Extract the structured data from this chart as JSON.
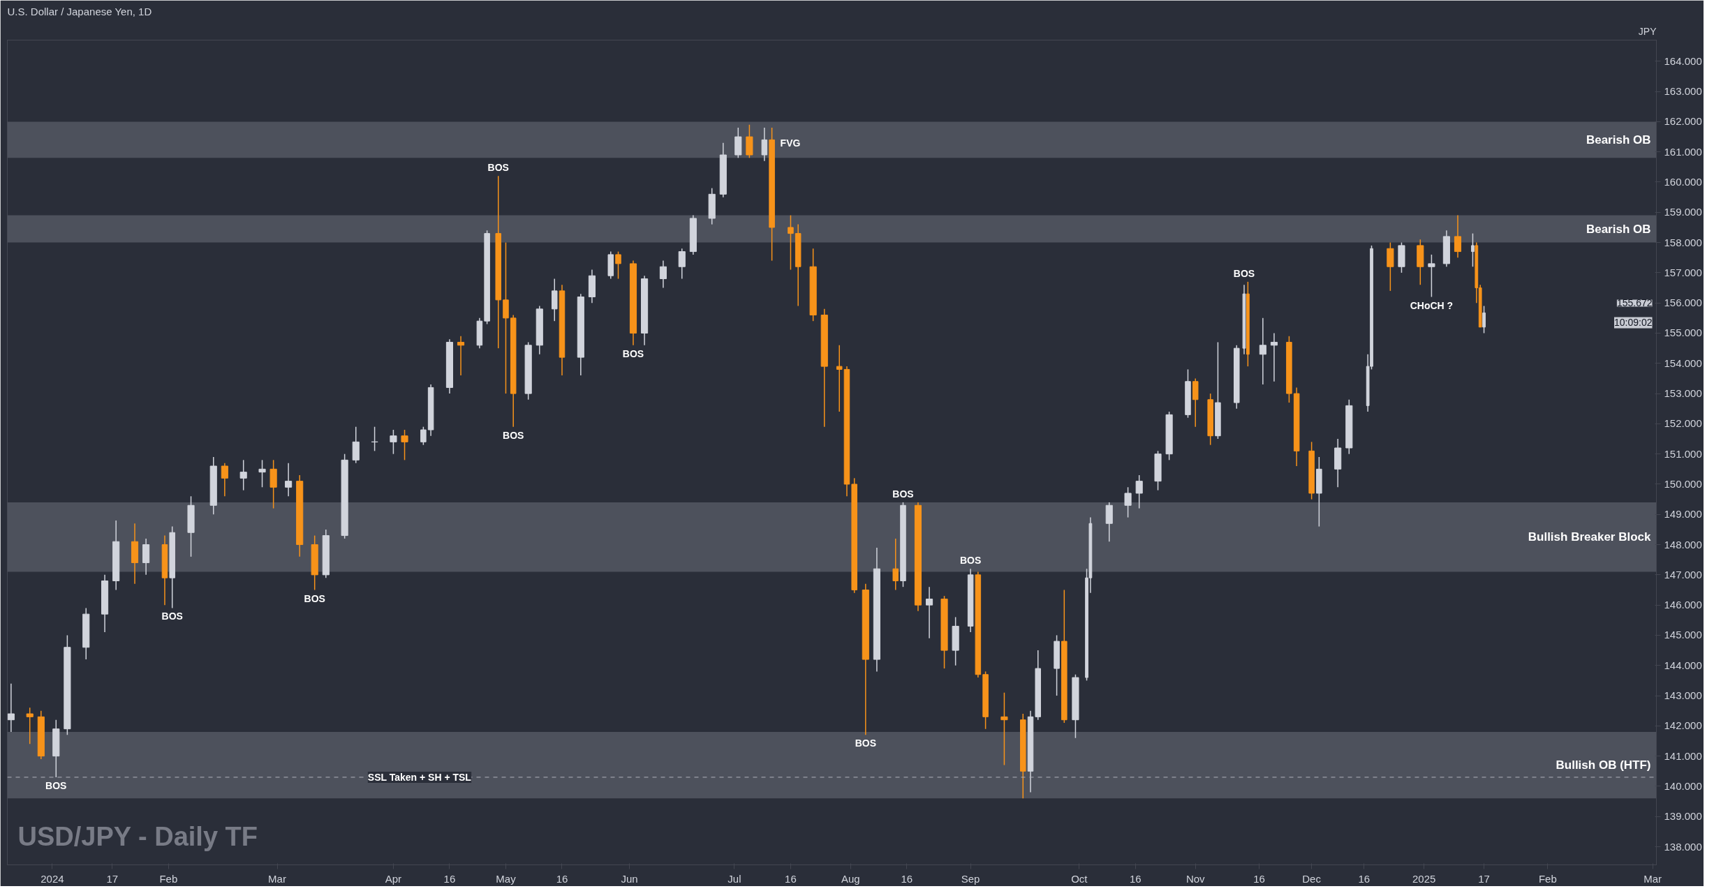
{
  "chart_data": {
    "type": "candlestick",
    "title": "U.S. Dollar / Japanese Yen, 1D",
    "ylabel": "JPY",
    "colors": [
      "#d1d4dc",
      "#f7931a",
      "#f7931a",
      "#d1d4dc",
      "#d1d4dc",
      "#d1d4dc",
      "#d1d4dc",
      "#d1d4dc",
      "#f7931a",
      "#d1d4dc",
      "#f7931a",
      "#d1d4dc",
      "#d1d4dc",
      "#d1d4dc",
      "#f7931a",
      "#d1d4dc",
      "#d1d4dc",
      "#f7931a",
      "#d1d4dc",
      "#f7931a",
      "#f7931a",
      "#d1d4dc",
      "#d1d4dc",
      "#d1d4dc",
      "#d1d4dc",
      "#d1d4dc",
      "#f7931a",
      "#d1d4dc",
      "#d1d4dc",
      "#d1d4dc",
      "#f7931a",
      "#d1d4dc",
      "#d1d4dc",
      "#f7931a",
      "#f7931a",
      "#f7931a",
      "#d1d4dc",
      "#d1d4dc",
      "#d1d4dc",
      "#f7931a",
      "#d1d4dc",
      "#d1d4dc",
      "#d1d4dc",
      "#f7931a",
      "#f7931a",
      "#d1d4dc",
      "#d1d4dc",
      "#d1d4dc",
      "#d1d4dc",
      "#d1d4dc",
      "#d1d4dc",
      "#d1d4dc",
      "#f7931a",
      "#d1d4dc",
      "#f7931a",
      "#f7931a",
      "#f7931a",
      "#f7931a",
      "#f7931a",
      "#f7931a",
      "#f7931a",
      "#f7931a",
      "#f7931a",
      "#d1d4dc",
      "#f7931a",
      "#d1d4dc",
      "#f7931a",
      "#d1d4dc",
      "#f7931a",
      "#d1d4dc",
      "#d1d4dc",
      "#f7931a",
      "#f7931a",
      "#f7931a",
      "#f7931a",
      "#d1d4dc",
      "#d1d4dc",
      "#d1d4dc",
      "#f7931a",
      "#d1d4dc",
      "#d1d4dc",
      "#d1d4dc",
      "#d1d4dc",
      "#d1d4dc",
      "#d1d4dc",
      "#d1d4dc",
      "#d1d4dc",
      "#d1d4dc",
      "#f7931a",
      "#f7931a",
      "#d1d4dc",
      "#d1d4dc",
      "#d1d4dc",
      "#f7931a",
      "#d1d4dc",
      "#d1d4dc",
      "#f7931a",
      "#f7931a",
      "#f7931a",
      "#d1d4dc",
      "#d1d4dc",
      "#d1d4dc",
      "#d1d4dc",
      "#d1d4dc",
      "#f7931a",
      "#d1d4dc",
      "#f7931a",
      "#d1d4dc",
      "#d1d4dc",
      "#f7931a",
      "#d1d4dc",
      "#f7931a",
      "#f7931a",
      "#d1d4dc"
    ],
    "x": [
      "2023-12-21",
      "2023-12-26",
      "2023-12-29",
      "2024-01-02",
      "2024-01-05",
      "2024-01-10",
      "2024-01-15",
      "2024-01-18",
      "2024-01-23",
      "2024-01-26",
      "2024-01-31",
      "2024-02-02",
      "2024-02-07",
      "2024-02-13",
      "2024-02-16",
      "2024-02-21",
      "2024-02-26",
      "2024-02-29",
      "2024-03-04",
      "2024-03-07",
      "2024-03-11",
      "2024-03-14",
      "2024-03-19",
      "2024-03-22",
      "2024-03-27",
      "2024-04-01",
      "2024-04-04",
      "2024-04-09",
      "2024-04-11",
      "2024-04-16",
      "2024-04-19",
      "2024-04-24",
      "2024-04-26",
      "2024-04-29",
      "2024-05-01",
      "2024-05-03",
      "2024-05-07",
      "2024-05-10",
      "2024-05-14",
      "2024-05-16",
      "2024-05-21",
      "2024-05-24",
      "2024-05-29",
      "2024-05-31",
      "2024-06-04",
      "2024-06-07",
      "2024-06-12",
      "2024-06-17",
      "2024-06-20",
      "2024-06-25",
      "2024-06-28",
      "2024-07-02",
      "2024-07-05",
      "2024-07-09",
      "2024-07-11",
      "2024-07-16",
      "2024-07-18",
      "2024-07-22",
      "2024-07-25",
      "2024-07-29",
      "2024-07-31",
      "2024-08-02",
      "2024-08-05",
      "2024-08-08",
      "2024-08-13",
      "2024-08-15",
      "2024-08-19",
      "2024-08-22",
      "2024-08-26",
      "2024-08-29",
      "2024-09-02",
      "2024-09-04",
      "2024-09-06",
      "2024-09-11",
      "2024-09-16",
      "2024-09-18",
      "2024-09-20",
      "2024-09-25",
      "2024-09-27",
      "2024-09-30",
      "2024-10-03",
      "2024-10-04",
      "2024-10-09",
      "2024-10-14",
      "2024-10-17",
      "2024-10-22",
      "2024-10-25",
      "2024-10-30",
      "2024-11-01",
      "2024-11-05",
      "2024-11-07",
      "2024-11-12",
      "2024-11-14",
      "2024-11-15",
      "2024-11-19",
      "2024-11-22",
      "2024-11-26",
      "2024-11-28",
      "2024-12-02",
      "2024-12-04",
      "2024-12-09",
      "2024-12-12",
      "2024-12-17",
      "2024-12-18",
      "2024-12-23",
      "2024-12-26",
      "2024-12-31",
      "2025-01-03",
      "2025-01-07",
      "2025-01-10",
      "2025-01-14",
      "2025-01-15",
      "2025-01-16",
      "2025-01-17"
    ],
    "ohlc": [
      [
        142.2,
        143.4,
        141.8,
        142.4
      ],
      [
        142.4,
        142.6,
        141.4,
        142.3
      ],
      [
        142.3,
        142.5,
        140.9,
        141.0
      ],
      [
        141.0,
        142.2,
        140.3,
        141.9
      ],
      [
        141.9,
        145.0,
        141.7,
        144.6
      ],
      [
        144.6,
        145.9,
        144.2,
        145.7
      ],
      [
        145.7,
        147.0,
        145.1,
        146.8
      ],
      [
        146.8,
        148.8,
        146.5,
        148.1
      ],
      [
        148.1,
        148.7,
        146.7,
        147.4
      ],
      [
        147.4,
        148.2,
        147.0,
        148.0
      ],
      [
        148.0,
        148.3,
        146.0,
        146.9
      ],
      [
        146.9,
        148.6,
        145.9,
        148.4
      ],
      [
        148.4,
        149.6,
        147.6,
        149.3
      ],
      [
        149.3,
        150.9,
        149.0,
        150.6
      ],
      [
        150.6,
        150.7,
        149.6,
        150.2
      ],
      [
        150.2,
        150.8,
        149.8,
        150.4
      ],
      [
        150.4,
        150.8,
        149.9,
        150.5
      ],
      [
        150.5,
        150.8,
        149.2,
        149.9
      ],
      [
        149.9,
        150.7,
        149.6,
        150.1
      ],
      [
        150.1,
        150.3,
        147.6,
        148.0
      ],
      [
        148.0,
        148.3,
        146.5,
        147.0
      ],
      [
        147.0,
        148.5,
        146.9,
        148.3
      ],
      [
        148.3,
        151.0,
        148.2,
        150.8
      ],
      [
        150.8,
        151.9,
        150.7,
        151.4
      ],
      [
        151.4,
        151.9,
        151.1,
        151.4
      ],
      [
        151.4,
        151.8,
        151.0,
        151.6
      ],
      [
        151.6,
        151.8,
        150.8,
        151.4
      ],
      [
        151.4,
        151.9,
        151.3,
        151.8
      ],
      [
        151.8,
        153.3,
        151.6,
        153.2
      ],
      [
        153.2,
        154.8,
        153.0,
        154.7
      ],
      [
        154.7,
        154.9,
        153.6,
        154.6
      ],
      [
        154.6,
        155.5,
        154.5,
        155.4
      ],
      [
        155.4,
        158.4,
        155.3,
        158.3
      ],
      [
        158.3,
        160.2,
        154.5,
        156.1
      ],
      [
        156.1,
        158.0,
        153.0,
        155.5
      ],
      [
        155.5,
        155.6,
        151.9,
        153.0
      ],
      [
        153.0,
        154.7,
        152.8,
        154.6
      ],
      [
        154.6,
        155.9,
        154.3,
        155.8
      ],
      [
        155.8,
        156.8,
        155.4,
        156.4
      ],
      [
        156.4,
        156.6,
        153.6,
        154.2
      ],
      [
        154.2,
        156.3,
        153.6,
        156.2
      ],
      [
        156.2,
        157.1,
        156.0,
        156.9
      ],
      [
        156.9,
        157.7,
        156.8,
        157.6
      ],
      [
        157.6,
        157.7,
        156.8,
        157.3
      ],
      [
        157.3,
        157.4,
        154.6,
        155.0
      ],
      [
        155.0,
        156.9,
        154.6,
        156.8
      ],
      [
        156.8,
        157.4,
        156.5,
        157.2
      ],
      [
        157.2,
        157.8,
        156.8,
        157.7
      ],
      [
        157.7,
        158.9,
        157.6,
        158.8
      ],
      [
        158.8,
        159.8,
        158.6,
        159.6
      ],
      [
        159.6,
        161.3,
        159.5,
        160.9
      ],
      [
        160.9,
        161.8,
        160.8,
        161.5
      ],
      [
        161.5,
        161.9,
        160.8,
        160.9
      ],
      [
        160.9,
        161.8,
        160.7,
        161.4
      ],
      [
        161.4,
        161.8,
        157.4,
        158.5
      ],
      [
        158.5,
        158.9,
        157.1,
        158.3
      ],
      [
        158.3,
        158.6,
        155.9,
        157.2
      ],
      [
        157.2,
        157.8,
        155.4,
        155.6
      ],
      [
        155.6,
        155.8,
        151.9,
        153.9
      ],
      [
        153.9,
        154.6,
        152.4,
        153.8
      ],
      [
        153.8,
        153.9,
        149.6,
        150.0
      ],
      [
        150.0,
        150.2,
        146.4,
        146.5
      ],
      [
        146.5,
        146.7,
        141.7,
        144.2
      ],
      [
        144.2,
        147.9,
        143.8,
        147.2
      ],
      [
        147.2,
        148.2,
        146.5,
        146.8
      ],
      [
        146.8,
        149.4,
        146.6,
        149.3
      ],
      [
        149.3,
        149.4,
        145.8,
        146.0
      ],
      [
        146.0,
        146.6,
        144.9,
        146.2
      ],
      [
        146.2,
        146.3,
        143.9,
        144.5
      ],
      [
        144.5,
        145.6,
        144.0,
        145.3
      ],
      [
        145.3,
        147.2,
        145.1,
        147.0
      ],
      [
        147.0,
        147.1,
        143.6,
        143.7
      ],
      [
        143.7,
        143.8,
        141.9,
        142.3
      ],
      [
        142.3,
        143.1,
        140.7,
        142.2
      ],
      [
        142.2,
        142.4,
        139.6,
        140.5
      ],
      [
        140.5,
        142.5,
        139.8,
        142.3
      ],
      [
        142.3,
        144.5,
        142.2,
        143.9
      ],
      [
        143.9,
        145.0,
        143.0,
        144.8
      ],
      [
        144.8,
        146.5,
        142.1,
        142.2
      ],
      [
        142.2,
        143.7,
        141.6,
        143.6
      ],
      [
        143.6,
        147.2,
        143.5,
        146.9
      ],
      [
        146.9,
        148.9,
        146.4,
        148.7
      ],
      [
        148.7,
        149.4,
        148.1,
        149.3
      ],
      [
        149.3,
        149.9,
        148.9,
        149.7
      ],
      [
        149.7,
        150.3,
        149.2,
        150.1
      ],
      [
        150.1,
        151.1,
        149.8,
        151.0
      ],
      [
        151.0,
        152.4,
        150.8,
        152.3
      ],
      [
        152.3,
        153.8,
        152.2,
        153.4
      ],
      [
        153.4,
        153.5,
        151.9,
        152.8
      ],
      [
        152.8,
        153.0,
        151.3,
        151.6
      ],
      [
        151.6,
        154.7,
        151.5,
        152.7
      ],
      [
        152.7,
        154.6,
        152.5,
        154.5
      ],
      [
        154.5,
        156.6,
        154.3,
        156.3
      ],
      [
        156.3,
        156.7,
        153.9,
        154.3
      ],
      [
        154.3,
        155.5,
        153.3,
        154.6
      ],
      [
        154.6,
        155.0,
        153.4,
        154.7
      ],
      [
        154.7,
        154.9,
        152.7,
        153.0
      ],
      [
        153.0,
        153.2,
        150.6,
        151.1
      ],
      [
        151.1,
        151.4,
        149.5,
        149.7
      ],
      [
        149.7,
        150.9,
        148.6,
        150.5
      ],
      [
        150.5,
        151.5,
        149.9,
        151.2
      ],
      [
        151.2,
        152.8,
        151.0,
        152.6
      ],
      [
        152.6,
        154.3,
        152.4,
        153.9
      ],
      [
        153.9,
        157.9,
        153.8,
        157.8
      ],
      [
        157.8,
        158.0,
        156.4,
        157.2
      ],
      [
        157.2,
        158.0,
        157.0,
        157.9
      ],
      [
        157.9,
        158.1,
        156.6,
        157.2
      ],
      [
        157.2,
        157.6,
        156.2,
        157.3
      ],
      [
        157.3,
        158.4,
        157.2,
        158.2
      ],
      [
        158.2,
        158.9,
        157.5,
        157.7
      ],
      [
        157.7,
        158.3,
        157.2,
        157.9
      ],
      [
        157.9,
        158.0,
        156.0,
        156.5
      ],
      [
        156.5,
        156.6,
        155.2,
        155.2
      ],
      [
        155.2,
        155.9,
        155.0,
        155.672
      ]
    ],
    "xlim": [
      "2023-12-20",
      "2025-03-04"
    ],
    "xticks": [
      {
        "value": "2024-01-01",
        "label": "2024"
      },
      {
        "value": "2024-01-17",
        "label": "17"
      },
      {
        "value": "2024-02-01",
        "label": "Feb"
      },
      {
        "value": "2024-03-01",
        "label": "Mar"
      },
      {
        "value": "2024-04-01",
        "label": "Apr"
      },
      {
        "value": "2024-04-16",
        "label": "16"
      },
      {
        "value": "2024-05-01",
        "label": "May"
      },
      {
        "value": "2024-05-16",
        "label": "16"
      },
      {
        "value": "2024-06-03",
        "label": "Jun"
      },
      {
        "value": "2024-07-01",
        "label": "Jul"
      },
      {
        "value": "2024-07-16",
        "label": "16"
      },
      {
        "value": "2024-08-01",
        "label": "Aug"
      },
      {
        "value": "2024-08-16",
        "label": "16"
      },
      {
        "value": "2024-09-02",
        "label": "Sep"
      },
      {
        "value": "2024-10-01",
        "label": "Oct"
      },
      {
        "value": "2024-10-16",
        "label": "16"
      },
      {
        "value": "2024-11-01",
        "label": "Nov"
      },
      {
        "value": "2024-11-18",
        "label": "16"
      },
      {
        "value": "2024-12-02",
        "label": "Dec"
      },
      {
        "value": "2024-12-16",
        "label": "16"
      },
      {
        "value": "2025-01-01",
        "label": "2025"
      },
      {
        "value": "2025-01-17",
        "label": "17"
      },
      {
        "value": "2025-02-03",
        "label": "Feb"
      },
      {
        "value": "2025-03-03",
        "label": "Mar"
      }
    ],
    "ylim": [
      137.4,
      164.7
    ],
    "yticks": [
      {
        "value": 138,
        "label": "138.000"
      },
      {
        "value": 139,
        "label": "139.000"
      },
      {
        "value": 140,
        "label": "140.000"
      },
      {
        "value": 141,
        "label": "141.000"
      },
      {
        "value": 142,
        "label": "142.000"
      },
      {
        "value": 143,
        "label": "143.000"
      },
      {
        "value": 144,
        "label": "144.000"
      },
      {
        "value": 145,
        "label": "145.000"
      },
      {
        "value": 146,
        "label": "146.000"
      },
      {
        "value": 147,
        "label": "147.000"
      },
      {
        "value": 148,
        "label": "148.000"
      },
      {
        "value": 149,
        "label": "149.000"
      },
      {
        "value": 150,
        "label": "150.000"
      },
      {
        "value": 151,
        "label": "151.000"
      },
      {
        "value": 152,
        "label": "152.000"
      },
      {
        "value": 153,
        "label": "153.000"
      },
      {
        "value": 154,
        "label": "154.000"
      },
      {
        "value": 155,
        "label": "155.000"
      },
      {
        "value": 156,
        "label": "156.000"
      },
      {
        "value": 157,
        "label": "157.000"
      },
      {
        "value": 158,
        "label": "158.000"
      },
      {
        "value": 159,
        "label": "159.000"
      },
      {
        "value": 160,
        "label": "160.000"
      },
      {
        "value": 161,
        "label": "161.000"
      },
      {
        "value": 162,
        "label": "162.000"
      },
      {
        "value": 163,
        "label": "163.000"
      },
      {
        "value": 164,
        "label": "164.000"
      }
    ],
    "bands": [
      {
        "axis": "y",
        "from": 160.8,
        "to": 162.0,
        "label": "Bearish OB",
        "color": "#5a5e68"
      },
      {
        "axis": "y",
        "from": 158.0,
        "to": 158.9,
        "label": "Bearish OB",
        "color": "#5a5e68"
      },
      {
        "axis": "y",
        "from": 147.1,
        "to": 149.4,
        "label": "Bullish Breaker Block",
        "color": "#5a5e68"
      },
      {
        "axis": "y",
        "from": 139.6,
        "to": 141.8,
        "label": "Bullish OB (HTF)",
        "color": "#5a5e68"
      }
    ],
    "ref_lines": [
      {
        "axis": "y",
        "value": 140.3,
        "label": "SSL Taken + SH + TSL",
        "color": "#b2b5be",
        "line_style": "dashed"
      }
    ],
    "annotations": [
      "USD/JPY - Daily TF",
      "155.672",
      "10:09:02",
      {
        "text": "BOS",
        "x": "2024-01-02",
        "y": 140.3
      },
      {
        "text": "BOS",
        "x": "2024-02-02",
        "y": 145.9
      },
      {
        "text": "BOS",
        "x": "2024-03-11",
        "y": 146.5
      },
      {
        "text": "BOS",
        "x": "2024-04-29",
        "y": 160.2
      },
      {
        "text": "BOS",
        "x": "2024-05-03",
        "y": 151.9
      },
      {
        "text": "BOS",
        "x": "2024-06-04",
        "y": 154.6
      },
      {
        "text": "FVG",
        "x": "2024-07-11",
        "y": 161.3
      },
      {
        "text": "BOS",
        "x": "2024-08-05",
        "y": 141.7
      },
      {
        "text": "BOS",
        "x": "2024-08-15",
        "y": 149.4
      },
      {
        "text": "BOS",
        "x": "2024-09-02",
        "y": 147.2
      },
      {
        "text": "BOS",
        "x": "2024-11-14",
        "y": 156.7
      },
      {
        "text": "CHoCH ?",
        "x": "2025-01-03",
        "y": 156.2
      }
    ]
  }
}
